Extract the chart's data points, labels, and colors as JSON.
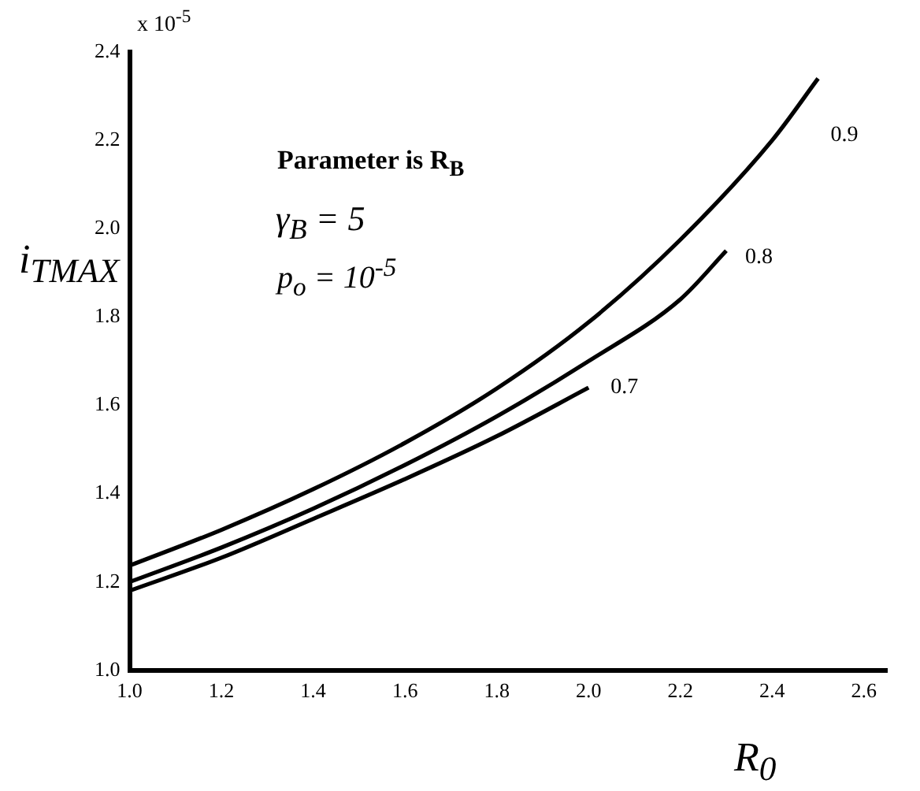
{
  "chart_data": {
    "type": "line",
    "xlabel": "R$_{0}$",
    "ylabel": "i$_{TMAX}$",
    "annotations": [
      "x 10$^{-5}$",
      "Parameter is R$_{B}$",
      "γ$_{B}$ =  5",
      "p$_{o}$ = 10$^{-5}$"
    ],
    "series": [
      {
        "name": "0.9",
        "color": "#000000",
        "x": [
          1.0,
          1.2,
          1.4,
          1.6,
          1.8,
          2.0,
          2.2,
          2.4,
          2.5
        ],
        "values": [
          1.237,
          1.318,
          1.41,
          1.515,
          1.638,
          1.788,
          1.975,
          2.2,
          2.34
        ]
      },
      {
        "name": "0.8",
        "color": "#000000",
        "x": [
          1.0,
          1.2,
          1.4,
          1.6,
          1.8,
          2.0,
          2.2,
          2.3
        ],
        "values": [
          1.2,
          1.278,
          1.366,
          1.465,
          1.575,
          1.7,
          1.84,
          1.95
        ]
      },
      {
        "name": "0.7",
        "color": "#000000",
        "x": [
          1.0,
          1.2,
          1.4,
          1.6,
          1.8,
          2.0
        ],
        "values": [
          1.18,
          1.255,
          1.343,
          1.433,
          1.53,
          1.64
        ]
      }
    ],
    "xlim": [
      1.0,
      2.65
    ],
    "xticks": [
      {
        "value": 1.0,
        "label": "1.0"
      },
      1.2,
      1.4,
      1.6,
      1.8,
      {
        "value": 2.0,
        "label": "2.0"
      },
      2.2,
      2.4,
      2.6
    ],
    "ylim": [
      1.0,
      2.4
    ],
    "yticks": [
      {
        "value": 1.0,
        "label": "1.0"
      },
      1.2,
      1.4,
      1.6,
      1.8,
      {
        "value": 2.0,
        "label": "2.0"
      },
      2.2,
      2.4
    ],
    "grid": false,
    "legend": false,
    "marker": "none",
    "line_style": "solid"
  }
}
